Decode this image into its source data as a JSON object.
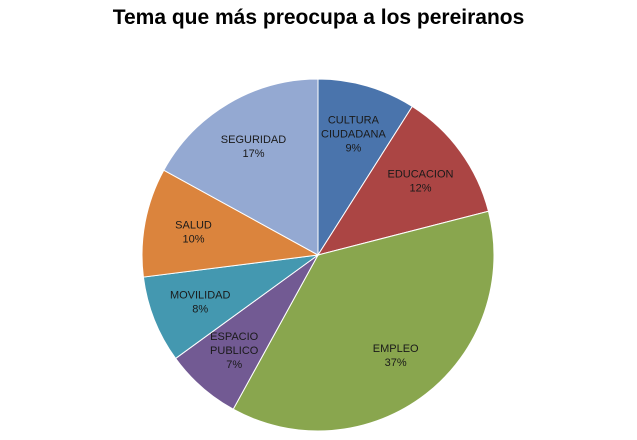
{
  "chart_data": {
    "type": "pie",
    "title": "Tema que más preocupa a los pereiranos",
    "slices": [
      {
        "label_lines": [
          "CULTURA",
          "CIUDADANA"
        ],
        "percent_label": "9%",
        "value": 9,
        "color": "#4a74ac"
      },
      {
        "label_lines": [
          "EDUCACION"
        ],
        "percent_label": "12%",
        "value": 12,
        "color": "#ab4544"
      },
      {
        "label_lines": [
          "EMPLEO"
        ],
        "percent_label": "37%",
        "value": 37,
        "color": "#89a64e"
      },
      {
        "label_lines": [
          "ESPACIO",
          "PUBLICO"
        ],
        "percent_label": "7%",
        "value": 7,
        "color": "#725a93"
      },
      {
        "label_lines": [
          "MOVILIDAD"
        ],
        "percent_label": "8%",
        "value": 8,
        "color": "#4498b0"
      },
      {
        "label_lines": [
          "SALUD"
        ],
        "percent_label": "10%",
        "value": 10,
        "color": "#db843d"
      },
      {
        "label_lines": [
          "SEGURIDAD"
        ],
        "percent_label": "17%",
        "value": 17,
        "color": "#94a9d2"
      }
    ],
    "legend": false
  }
}
